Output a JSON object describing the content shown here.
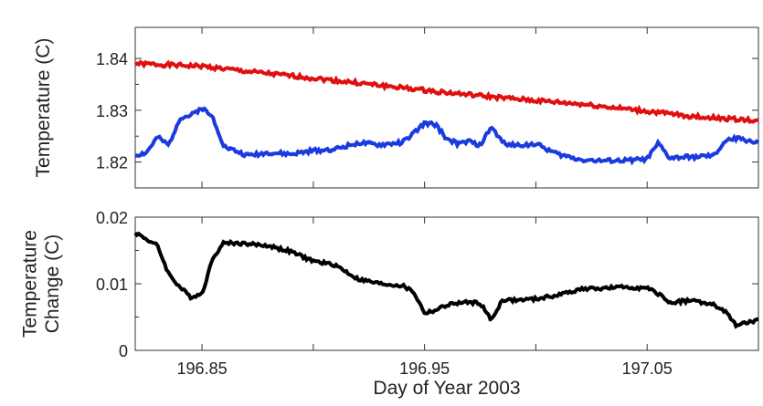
{
  "chart_data": [
    {
      "type": "line",
      "xlabel": "",
      "ylabel": "Temperature (C)",
      "xlim": [
        196.82,
        197.1
      ],
      "ylim": [
        1.815,
        1.846
      ],
      "yticks": [
        "1.82",
        "1.83",
        "1.84"
      ],
      "ytick_values": [
        1.82,
        1.83,
        1.84
      ],
      "xtick_values": [
        196.85,
        196.9,
        196.95,
        197.0,
        197.05
      ],
      "series": [
        {
          "color": "#e01010",
          "x": [
            196.82,
            196.85,
            196.87,
            196.9,
            196.93,
            196.96,
            196.99,
            197.02,
            197.05,
            197.07,
            197.1
          ],
          "values": [
            1.839,
            1.8385,
            1.8375,
            1.8362,
            1.8348,
            1.8334,
            1.8322,
            1.8312,
            1.8298,
            1.8288,
            1.828
          ]
        },
        {
          "color": "#1a3be0",
          "x": [
            196.82,
            196.825,
            196.83,
            196.835,
            196.84,
            196.845,
            196.85,
            196.855,
            196.86,
            196.87,
            196.88,
            196.89,
            196.9,
            196.91,
            196.92,
            196.93,
            196.94,
            196.945,
            196.95,
            196.955,
            196.96,
            196.965,
            196.97,
            196.975,
            196.98,
            196.985,
            196.99,
            197.0,
            197.01,
            197.02,
            197.03,
            197.04,
            197.05,
            197.055,
            197.06,
            197.07,
            197.08,
            197.085,
            197.09,
            197.1
          ],
          "values": [
            1.8213,
            1.8218,
            1.8248,
            1.8232,
            1.8285,
            1.829,
            1.8305,
            1.8285,
            1.823,
            1.8213,
            1.8218,
            1.8215,
            1.8222,
            1.8225,
            1.8237,
            1.8233,
            1.8238,
            1.8255,
            1.8275,
            1.8272,
            1.8245,
            1.8235,
            1.824,
            1.8232,
            1.8268,
            1.8238,
            1.8232,
            1.8235,
            1.8215,
            1.8205,
            1.8202,
            1.8203,
            1.8206,
            1.8236,
            1.8208,
            1.821,
            1.8212,
            1.824,
            1.8246,
            1.8238
          ]
        }
      ]
    },
    {
      "type": "line",
      "xlabel": "Day of Year 2003",
      "ylabel": "Temperature Change (C)",
      "xlim": [
        196.82,
        197.1
      ],
      "ylim": [
        0,
        0.02
      ],
      "yticks": [
        "0",
        "0.01",
        "0.02"
      ],
      "ytick_values": [
        0,
        0.01,
        0.02
      ],
      "xticks": [
        "196.85",
        "196.95",
        "197.05"
      ],
      "xtick_values": [
        196.85,
        196.95,
        197.05
      ],
      "minor_xtick_values": [
        196.9,
        197.0
      ],
      "series": [
        {
          "color": "#000000",
          "x": [
            196.82,
            196.825,
            196.83,
            196.835,
            196.84,
            196.845,
            196.85,
            196.855,
            196.86,
            196.87,
            196.88,
            196.89,
            196.9,
            196.91,
            196.92,
            196.93,
            196.94,
            196.945,
            196.95,
            196.955,
            196.96,
            196.965,
            196.97,
            196.975,
            196.98,
            196.985,
            196.99,
            197.0,
            197.01,
            197.02,
            197.03,
            197.04,
            197.05,
            197.055,
            197.06,
            197.07,
            197.08,
            197.085,
            197.09,
            197.1
          ],
          "values": [
            0.0177,
            0.0167,
            0.0157,
            0.0115,
            0.0095,
            0.008,
            0.0085,
            0.014,
            0.0162,
            0.016,
            0.0157,
            0.0148,
            0.0134,
            0.0128,
            0.0107,
            0.01,
            0.0097,
            0.0088,
            0.0056,
            0.006,
            0.0068,
            0.0071,
            0.0072,
            0.0071,
            0.0045,
            0.0076,
            0.0075,
            0.0077,
            0.0083,
            0.0092,
            0.0093,
            0.0095,
            0.0093,
            0.0085,
            0.0072,
            0.0075,
            0.0068,
            0.0058,
            0.0038,
            0.0045
          ]
        }
      ]
    }
  ]
}
